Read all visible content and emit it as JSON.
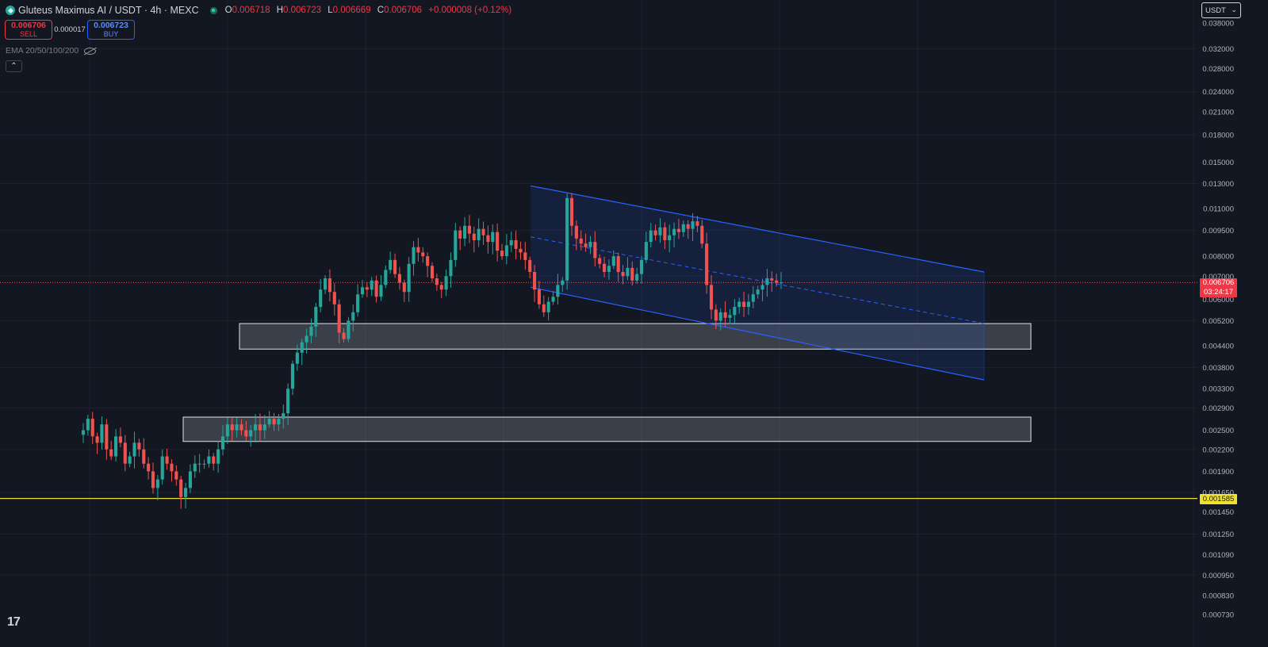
{
  "header": {
    "title": "Gluteus Maximus AI / USDT · 4h · MEXC",
    "ohlc": {
      "o_label": "O",
      "o": "0.006718",
      "h_label": "H",
      "h": "0.006723",
      "l_label": "L",
      "l": "0.006669",
      "c_label": "C",
      "c": "0.006706",
      "change": "+0.000008 (+0.12%)"
    }
  },
  "trade": {
    "sell_price": "0.006706",
    "sell_label": "SELL",
    "spread": "0.000017",
    "buy_price": "0.006723",
    "buy_label": "BUY"
  },
  "indicator": {
    "label": "EMA 20/50/100/200"
  },
  "currency_select": {
    "value": "USDT"
  },
  "labels": {
    "last_price": "0.006706",
    "countdown": "03:24:17",
    "level_price": "0.001585",
    "collapse": "⌃",
    "tv_logo": "17"
  },
  "colors": {
    "background": "#131722",
    "up": "#26a69a",
    "down": "#ef5350",
    "channel": "#2962ff",
    "zone_fill": "#5d606b",
    "level": "#f0e130",
    "grid": "#1e222d"
  },
  "chart_data": {
    "type": "candlestick",
    "symbol": "Gluteus Maximus AI / USDT",
    "interval": "4h",
    "exchange": "MEXC",
    "y_scale": "log",
    "y_ticks": [
      "0.038000",
      "0.032000",
      "0.028000",
      "0.024000",
      "0.021000",
      "0.018000",
      "0.015000",
      "0.013000",
      "0.011000",
      "0.009500",
      "0.008000",
      "0.007000",
      "0.006000",
      "0.005200",
      "0.004400",
      "0.003800",
      "0.003300",
      "0.002900",
      "0.002500",
      "0.002200",
      "0.001900",
      "0.001650",
      "0.001450",
      "0.001250",
      "0.001090",
      "0.000950",
      "0.000830",
      "0.000730"
    ],
    "last_price": 0.006706,
    "horizontal_level": 0.001585,
    "zones": [
      {
        "low": 0.0043,
        "high": 0.0051
      },
      {
        "low": 0.00232,
        "high": 0.00273
      }
    ],
    "channel": {
      "upper_start": 0.0128,
      "upper_end": 0.0072,
      "lower_start": 0.0065,
      "lower_end": 0.0035,
      "mid_start": 0.0091,
      "mid_end": 0.0051
    },
    "closes": [
      0.0025,
      0.0027,
      0.0024,
      0.0023,
      0.0026,
      0.0022,
      0.0021,
      0.0024,
      0.0023,
      0.002,
      0.0021,
      0.0023,
      0.0022,
      0.002,
      0.0019,
      0.0017,
      0.0018,
      0.0021,
      0.002,
      0.0019,
      0.0018,
      0.0016,
      0.0017,
      0.0019,
      0.002,
      0.002,
      0.002,
      0.0021,
      0.002,
      0.0022,
      0.0024,
      0.0026,
      0.0025,
      0.0026,
      0.0025,
      0.0024,
      0.0025,
      0.0026,
      0.0025,
      0.0026,
      0.0027,
      0.0026,
      0.0027,
      0.0028,
      0.0033,
      0.0039,
      0.0042,
      0.0045,
      0.0047,
      0.005,
      0.0057,
      0.0064,
      0.0069,
      0.0063,
      0.0058,
      0.0048,
      0.0046,
      0.0052,
      0.0055,
      0.0062,
      0.0065,
      0.0064,
      0.0068,
      0.0061,
      0.0066,
      0.0073,
      0.0078,
      0.0071,
      0.0067,
      0.0063,
      0.0076,
      0.0085,
      0.0082,
      0.008,
      0.0075,
      0.0069,
      0.0066,
      0.0064,
      0.007,
      0.0078,
      0.0095,
      0.009,
      0.0098,
      0.0093,
      0.0089,
      0.0096,
      0.0092,
      0.0088,
      0.0094,
      0.0083,
      0.008,
      0.0086,
      0.0089,
      0.0084,
      0.0082,
      0.0078,
      0.0072,
      0.0064,
      0.0058,
      0.0055,
      0.0059,
      0.0061,
      0.0066,
      0.0068,
      0.0118,
      0.0098,
      0.009,
      0.0087,
      0.0085,
      0.0088,
      0.0079,
      0.0076,
      0.0072,
      0.0075,
      0.008,
      0.0072,
      0.007,
      0.0074,
      0.0068,
      0.0071,
      0.0078,
      0.0088,
      0.0095,
      0.0092,
      0.0097,
      0.0089,
      0.0092,
      0.0096,
      0.0094,
      0.0099,
      0.0096,
      0.0101,
      0.0098,
      0.0087,
      0.0066,
      0.0056,
      0.0052,
      0.0055,
      0.0053,
      0.0054,
      0.0057,
      0.0059,
      0.0057,
      0.0059,
      0.0062,
      0.0064,
      0.0066,
      0.0069,
      0.0068,
      0.0067,
      0.00671
    ]
  }
}
